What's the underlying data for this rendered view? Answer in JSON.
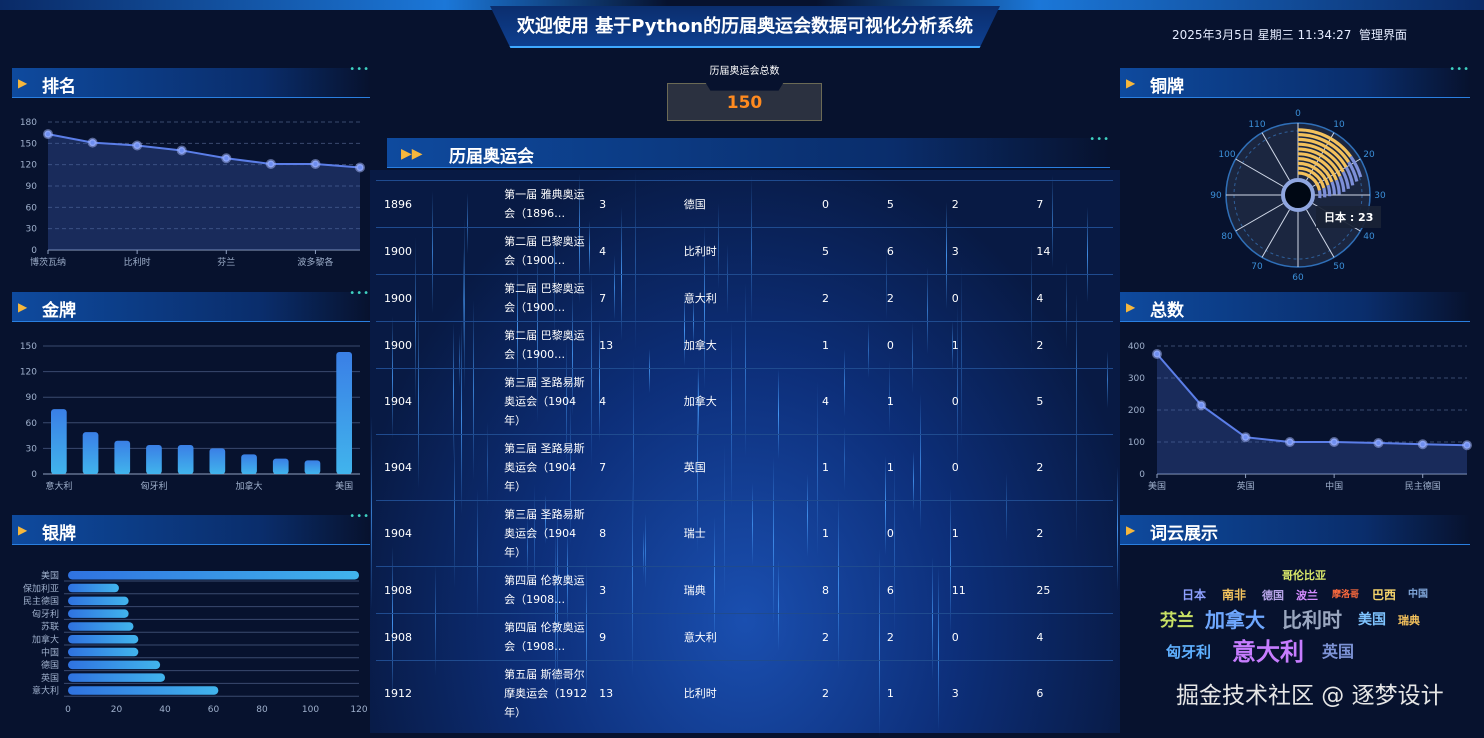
{
  "header": {
    "title": "欢迎使用 基于Python的历届奥运会数据可视化分析系统",
    "datetime": "2025年3月5日 星期三 11:34:27",
    "admin_link": "管理界面"
  },
  "panels": {
    "rank": "排名",
    "gold": "金牌",
    "silver": "银牌",
    "bronze": "铜牌",
    "total": "总数",
    "wordcloud": "词云展示",
    "olympics": "历届奥运会"
  },
  "summary": {
    "label": "历届奥运会总数",
    "value": "150"
  },
  "table": {
    "rows": [
      [
        "1896",
        "第一届 雅典奥运会（1896…",
        "3",
        "德国",
        "0",
        "5",
        "2",
        "7"
      ],
      [
        "1900",
        "第二届 巴黎奥运会（1900…",
        "4",
        "比利时",
        "5",
        "6",
        "3",
        "14"
      ],
      [
        "1900",
        "第二届 巴黎奥运会（1900…",
        "7",
        "意大利",
        "2",
        "2",
        "0",
        "4"
      ],
      [
        "1900",
        "第二届 巴黎奥运会（1900…",
        "13",
        "加拿大",
        "1",
        "0",
        "1",
        "2"
      ],
      [
        "1904",
        "第三届 圣路易斯奥运会（1904年）",
        "4",
        "加拿大",
        "4",
        "1",
        "0",
        "5"
      ],
      [
        "1904",
        "第三届 圣路易斯奥运会（1904年）",
        "7",
        "英国",
        "1",
        "1",
        "0",
        "2"
      ],
      [
        "1904",
        "第三届 圣路易斯奥运会（1904年）",
        "8",
        "瑞士",
        "1",
        "0",
        "1",
        "2"
      ],
      [
        "1908",
        "第四届 伦敦奥运会（1908…",
        "3",
        "瑞典",
        "8",
        "6",
        "11",
        "25"
      ],
      [
        "1908",
        "第四届 伦敦奥运会（1908…",
        "9",
        "意大利",
        "2",
        "2",
        "0",
        "4"
      ],
      [
        "1912",
        "第五届 斯德哥尔摩奥运会（1912年）",
        "13",
        "比利时",
        "2",
        "1",
        "3",
        "6"
      ]
    ]
  },
  "chart_data": [
    {
      "id": "rank",
      "type": "area-line",
      "categories": [
        "博茨瓦纳",
        "",
        "比利时",
        "",
        "芬兰",
        "",
        "波多黎各",
        ""
      ],
      "values": [
        163,
        151,
        147,
        140,
        129,
        121,
        121,
        116
      ],
      "ylim": [
        0,
        180
      ],
      "yticks": [
        0,
        30,
        60,
        90,
        120,
        150,
        180
      ],
      "grid": "dashed",
      "color": "#5b7ee8"
    },
    {
      "id": "gold",
      "type": "bar",
      "categories": [
        "意大利",
        "",
        "",
        "匈牙利",
        "",
        "",
        "加拿大",
        "",
        "",
        "美国"
      ],
      "values": [
        76,
        49,
        39,
        34,
        34,
        30,
        23,
        18,
        16,
        143
      ],
      "ylim": [
        0,
        150
      ],
      "yticks": [
        0,
        30,
        60,
        90,
        120,
        150
      ],
      "color": "#3a8ee8"
    },
    {
      "id": "silver",
      "type": "hbar",
      "categories": [
        "美国",
        "保加利亚",
        "民主德国",
        "匈牙利",
        "苏联",
        "加拿大",
        "中国",
        "德国",
        "英国",
        "意大利"
      ],
      "values": [
        120,
        21,
        25,
        25,
        27,
        29,
        29,
        38,
        40,
        62
      ],
      "xlim": [
        0,
        120
      ],
      "xticks": [
        0,
        20,
        40,
        60,
        80,
        100,
        120
      ],
      "color": "#3a9ee8"
    },
    {
      "id": "bronze",
      "type": "polar-bar",
      "angle_ticks": [
        0,
        10,
        20,
        30,
        40,
        50,
        60,
        70,
        80,
        90,
        100,
        110
      ],
      "angle_max": 120,
      "values": [
        26,
        25,
        24,
        23,
        23,
        22,
        21,
        20,
        19,
        18
      ],
      "tooltip": "日本 : 23",
      "color": "#f3c15c"
    },
    {
      "id": "total",
      "type": "area-line",
      "categories": [
        "美国",
        "",
        "英国",
        "",
        "中国",
        "",
        "民主德国",
        ""
      ],
      "values": [
        375,
        215,
        115,
        100,
        100,
        97,
        93,
        90
      ],
      "ylim": [
        0,
        400
      ],
      "yticks": [
        0,
        100,
        200,
        300,
        400
      ],
      "grid": "dashed",
      "color": "#5b7ee8"
    }
  ],
  "wordcloud": [
    {
      "text": "意大利",
      "color": "#c77dff"
    },
    {
      "text": "加拿大",
      "color": "#6fa8ff"
    },
    {
      "text": "比利时",
      "color": "#9aa7c0"
    },
    {
      "text": "芬兰",
      "color": "#c9e265"
    },
    {
      "text": "英国",
      "color": "#7d93d6"
    },
    {
      "text": "匈牙利",
      "color": "#5fb0ff"
    },
    {
      "text": "南非",
      "color": "#f5c45e"
    },
    {
      "text": "日本",
      "color": "#8ea0ff"
    },
    {
      "text": "哥伦比亚",
      "color": "#d9e86a"
    },
    {
      "text": "德国",
      "color": "#b7a4e8"
    },
    {
      "text": "波兰",
      "color": "#d48cff"
    },
    {
      "text": "美国",
      "color": "#7fc4ff"
    },
    {
      "text": "巴西",
      "color": "#f5d46a"
    },
    {
      "text": "中国",
      "color": "#7fa5d8"
    },
    {
      "text": "瑞典",
      "color": "#f3c15c"
    },
    {
      "text": "摩洛哥",
      "color": "#ff6b3d"
    }
  ],
  "watermark": "掘金技术社区 @ 逐梦设计"
}
